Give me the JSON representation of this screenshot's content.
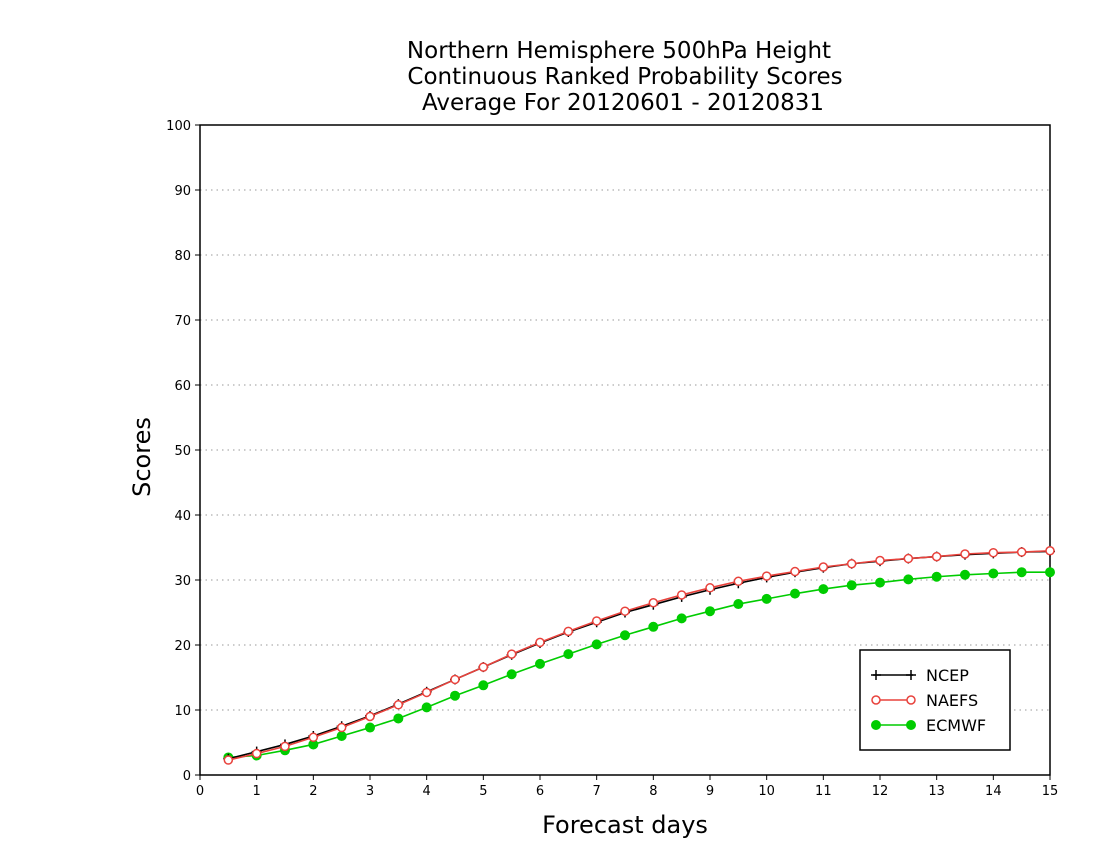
{
  "chart_data": {
    "type": "line",
    "title": [
      "Northern Hemisphere 500hPa Height",
      "Continuous Ranked Probability Scores",
      "Average For 20120601 - 20120831"
    ],
    "xlabel": "Forecast days",
    "ylabel": "Scores",
    "xlim": [
      0,
      15
    ],
    "ylim": [
      0,
      100
    ],
    "xticks": [
      0,
      1,
      2,
      3,
      4,
      5,
      6,
      7,
      8,
      9,
      10,
      11,
      12,
      13,
      14,
      15
    ],
    "yticks": [
      0,
      10,
      20,
      30,
      40,
      50,
      60,
      70,
      80,
      90,
      100
    ],
    "grid": "horizontal dotted",
    "legend_position": "bottom-right",
    "x": [
      0.5,
      1,
      1.5,
      2,
      2.5,
      3,
      3.5,
      4,
      4.5,
      5,
      5.5,
      6,
      6.5,
      7,
      7.5,
      8,
      8.5,
      9,
      9.5,
      10,
      10.5,
      11,
      11.5,
      12,
      12.5,
      13,
      13.5,
      14,
      14.5,
      15
    ],
    "series": [
      {
        "name": "NCEP",
        "color": "#000000",
        "marker": "plus",
        "values": [
          2.5,
          3.6,
          4.7,
          6.0,
          7.5,
          9.1,
          10.9,
          12.8,
          14.7,
          16.6,
          18.5,
          20.3,
          22.0,
          23.5,
          25.0,
          26.2,
          27.4,
          28.5,
          29.5,
          30.4,
          31.2,
          31.9,
          32.5,
          32.9,
          33.3,
          33.6,
          33.9,
          34.1,
          34.3,
          34.4
        ]
      },
      {
        "name": "NAEFS",
        "color": "#e8423c",
        "marker": "open-circle",
        "values": [
          2.3,
          3.3,
          4.4,
          5.8,
          7.3,
          9.0,
          10.8,
          12.7,
          14.7,
          16.6,
          18.6,
          20.4,
          22.1,
          23.7,
          25.2,
          26.5,
          27.7,
          28.8,
          29.8,
          30.6,
          31.3,
          32.0,
          32.5,
          33.0,
          33.3,
          33.6,
          34.0,
          34.2,
          34.3,
          34.5
        ]
      },
      {
        "name": "ECMWF",
        "color": "#00cc00",
        "marker": "filled-circle",
        "values": [
          2.7,
          3.0,
          3.8,
          4.7,
          6.0,
          7.3,
          8.7,
          10.4,
          12.2,
          13.8,
          15.5,
          17.1,
          18.6,
          20.1,
          21.5,
          22.8,
          24.1,
          25.2,
          26.3,
          27.1,
          27.9,
          28.6,
          29.2,
          29.6,
          30.1,
          30.5,
          30.8,
          31.0,
          31.2,
          31.2
        ]
      }
    ]
  }
}
